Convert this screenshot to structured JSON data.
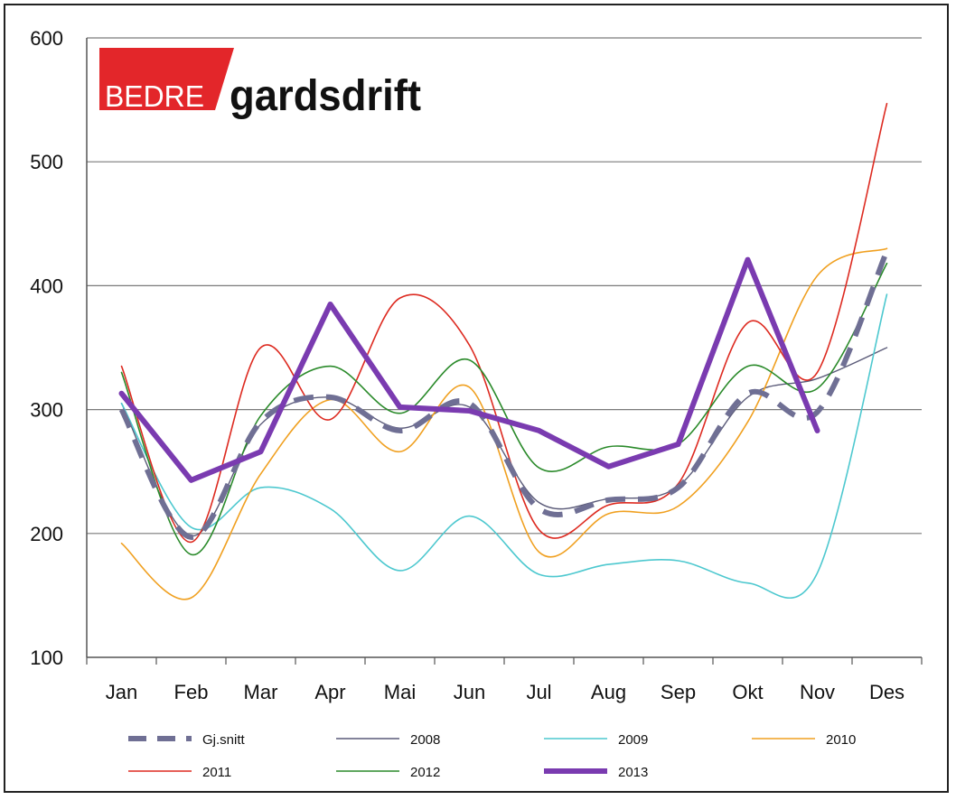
{
  "logo": {
    "part1": "BEDRE",
    "part2": "gardsdrift"
  },
  "chart_data": {
    "type": "line",
    "title": "",
    "xlabel": "",
    "ylabel": "",
    "categories": [
      "Jan",
      "Feb",
      "Mar",
      "Apr",
      "Mai",
      "Jun",
      "Jul",
      "Aug",
      "Sep",
      "Okt",
      "Nov",
      "Des"
    ],
    "ylim": [
      100,
      600
    ],
    "yticks": [
      100,
      200,
      300,
      400,
      500,
      600
    ],
    "grid": true,
    "legend_position": "bottom",
    "series": [
      {
        "name": "Gj.snitt",
        "color": "#6f6f94",
        "style": "dashed",
        "width": 6,
        "smooth": true,
        "values": [
          300,
          197,
          290,
          310,
          283,
          305,
          220,
          227,
          237,
          313,
          298,
          428
        ]
      },
      {
        "name": "2008",
        "color": "#5a5a78",
        "style": "solid",
        "width": 1.4,
        "smooth": true,
        "values": [
          305,
          198,
          288,
          310,
          285,
          302,
          225,
          228,
          238,
          310,
          325,
          350
        ]
      },
      {
        "name": "2009",
        "color": "#4dc8cf",
        "style": "solid",
        "width": 1.6,
        "smooth": true,
        "values": [
          305,
          205,
          237,
          220,
          170,
          214,
          167,
          175,
          178,
          160,
          168,
          393
        ]
      },
      {
        "name": "2010",
        "color": "#f0a020",
        "style": "solid",
        "width": 1.6,
        "smooth": true,
        "values": [
          192,
          148,
          248,
          308,
          266,
          318,
          185,
          216,
          222,
          290,
          408,
          430
        ]
      },
      {
        "name": "2011",
        "color": "#dd2a20",
        "style": "solid",
        "width": 1.6,
        "smooth": true,
        "values": [
          335,
          193,
          350,
          292,
          390,
          352,
          203,
          223,
          240,
          370,
          330,
          547
        ]
      },
      {
        "name": "2012",
        "color": "#2a8a2a",
        "style": "solid",
        "width": 1.6,
        "smooth": true,
        "values": [
          330,
          183,
          295,
          335,
          297,
          340,
          253,
          270,
          272,
          335,
          317,
          418
        ]
      },
      {
        "name": "2013",
        "color": "#7a3bb0",
        "style": "solid",
        "width": 6,
        "smooth": false,
        "values": [
          313,
          243,
          266,
          385,
          302,
          299,
          283,
          254,
          272,
          421,
          283,
          null
        ]
      }
    ]
  }
}
